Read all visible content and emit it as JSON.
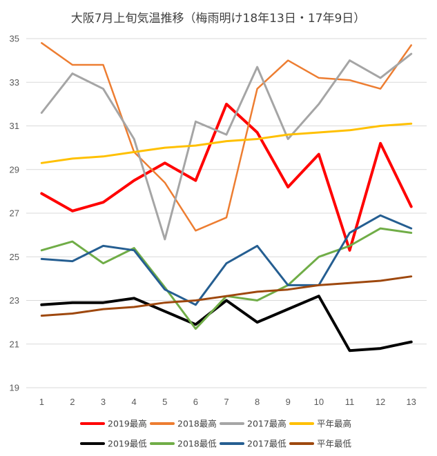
{
  "chart_data": {
    "type": "line",
    "title": "大阪7月上旬気温推移（梅雨明け18年13日・17年9日）",
    "xlabel": "",
    "ylabel": "",
    "categories": [
      "1",
      "2",
      "3",
      "4",
      "5",
      "6",
      "7",
      "8",
      "9",
      "10",
      "11",
      "12",
      "13"
    ],
    "ylim": [
      19,
      35
    ],
    "yticks": [
      "19",
      "21",
      "23",
      "25",
      "27",
      "29",
      "31",
      "33",
      "35"
    ],
    "grid": true,
    "legend_position": "bottom",
    "series": [
      {
        "name": "2019最高",
        "color": "#ff0000",
        "width": 4,
        "values": [
          27.9,
          27.1,
          27.5,
          28.5,
          29.3,
          28.5,
          32.0,
          30.7,
          28.2,
          29.7,
          25.3,
          30.2,
          27.3
        ]
      },
      {
        "name": "2018最高",
        "color": "#ed7d31",
        "width": 2.5,
        "values": [
          34.8,
          33.8,
          33.8,
          29.8,
          28.4,
          26.2,
          26.8,
          32.7,
          34.0,
          33.2,
          33.1,
          32.7,
          34.7
        ]
      },
      {
        "name": "2017最高",
        "color": "#a5a5a5",
        "width": 3,
        "values": [
          31.6,
          33.4,
          32.7,
          30.4,
          25.8,
          31.2,
          30.6,
          33.7,
          30.4,
          32.0,
          34.0,
          33.2,
          34.3
        ]
      },
      {
        "name": "平年最高",
        "color": "#ffc000",
        "width": 3,
        "values": [
          29.3,
          29.5,
          29.6,
          29.8,
          30.0,
          30.1,
          30.3,
          30.4,
          30.6,
          30.7,
          30.8,
          31.0,
          31.1
        ]
      },
      {
        "name": "2019最低",
        "color": "#000000",
        "width": 4,
        "values": [
          22.8,
          22.9,
          22.9,
          23.1,
          22.5,
          21.9,
          23.0,
          22.0,
          22.6,
          23.2,
          20.7,
          20.8,
          21.1
        ]
      },
      {
        "name": "2018最低",
        "color": "#70ad47",
        "width": 3,
        "values": [
          25.3,
          25.7,
          24.7,
          25.4,
          23.6,
          21.7,
          23.2,
          23.0,
          23.7,
          25.0,
          25.5,
          26.3,
          26.1
        ]
      },
      {
        "name": "2017最低",
        "color": "#255e91",
        "width": 3,
        "values": [
          24.9,
          24.8,
          25.5,
          25.3,
          23.5,
          22.8,
          24.7,
          25.5,
          23.7,
          23.7,
          26.1,
          26.9,
          26.3
        ]
      },
      {
        "name": "平年最低",
        "color": "#9e480e",
        "width": 3,
        "values": [
          22.3,
          22.4,
          22.6,
          22.7,
          22.9,
          23.0,
          23.2,
          23.4,
          23.5,
          23.7,
          23.8,
          23.9,
          24.1
        ]
      }
    ]
  }
}
